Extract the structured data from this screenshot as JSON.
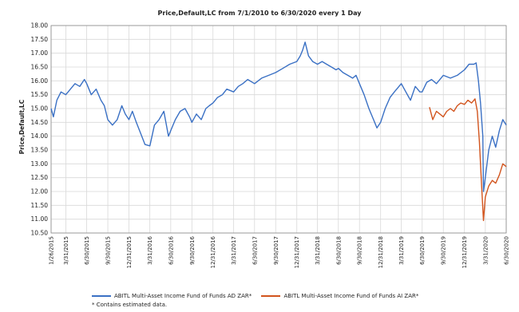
{
  "colors": {
    "ad": "#3a70c4",
    "ai": "#d2541d",
    "grid": "#d9d9d9",
    "axis": "#888888",
    "text": "#222222"
  },
  "chart_data": {
    "type": "line",
    "title": "Price,Default,LC from 7/1/2010 to 6/30/2020 every 1 Day",
    "xlabel": "",
    "ylabel": "Price,Default,LC",
    "grid": true,
    "legend_position": "bottom",
    "x_ticks": [
      "1/26/2015",
      "3/31/2015",
      "6/30/2015",
      "9/30/2015",
      "12/31/2015",
      "3/31/2016",
      "6/30/2016",
      "9/30/2016",
      "12/31/2016",
      "3/31/2017",
      "6/30/2017",
      "9/30/2017",
      "12/31/2017",
      "3/31/2018",
      "6/30/2018",
      "9/30/2018",
      "12/31/2018",
      "3/31/2019",
      "6/30/2019",
      "9/30/2019",
      "12/31/2019",
      "3/31/2020",
      "6/30/2020"
    ],
    "y_ticks": [
      "10.50",
      "11.00",
      "11.50",
      "12.00",
      "12.50",
      "13.00",
      "13.50",
      "14.00",
      "14.50",
      "15.00",
      "15.50",
      "16.00",
      "16.50",
      "17.00",
      "17.50",
      "18.00"
    ],
    "ylim": [
      10.5,
      18.0
    ],
    "series": [
      {
        "name": "ABITL Multi-Asset Income Fund of Funds AD ZAR*",
        "color": "#3a70c4",
        "x": [
          "2015-01-26",
          "2015-02-05",
          "2015-02-20",
          "2015-03-10",
          "2015-03-31",
          "2015-04-20",
          "2015-05-10",
          "2015-05-31",
          "2015-06-20",
          "2015-06-30",
          "2015-07-20",
          "2015-08-10",
          "2015-08-31",
          "2015-09-15",
          "2015-09-30",
          "2015-10-20",
          "2015-11-10",
          "2015-11-30",
          "2015-12-15",
          "2015-12-31",
          "2016-01-15",
          "2016-02-01",
          "2016-02-20",
          "2016-03-10",
          "2016-03-31",
          "2016-04-20",
          "2016-05-10",
          "2016-05-31",
          "2016-06-20",
          "2016-06-30",
          "2016-07-20",
          "2016-08-10",
          "2016-08-31",
          "2016-09-20",
          "2016-09-30",
          "2016-10-20",
          "2016-11-10",
          "2016-11-30",
          "2016-12-15",
          "2016-12-31",
          "2017-01-20",
          "2017-02-10",
          "2017-03-01",
          "2017-03-31",
          "2017-04-20",
          "2017-05-10",
          "2017-05-31",
          "2017-06-30",
          "2017-07-31",
          "2017-08-31",
          "2017-09-30",
          "2017-10-31",
          "2017-11-30",
          "2017-12-31",
          "2018-01-15",
          "2018-01-25",
          "2018-02-05",
          "2018-02-20",
          "2018-03-10",
          "2018-03-31",
          "2018-04-20",
          "2018-05-10",
          "2018-05-31",
          "2018-06-20",
          "2018-06-30",
          "2018-07-20",
          "2018-08-10",
          "2018-08-31",
          "2018-09-15",
          "2018-09-30",
          "2018-10-20",
          "2018-11-10",
          "2018-11-30",
          "2018-12-15",
          "2018-12-31",
          "2019-01-20",
          "2019-02-10",
          "2019-03-01",
          "2019-03-31",
          "2019-04-20",
          "2019-05-10",
          "2019-05-31",
          "2019-06-20",
          "2019-06-30",
          "2019-07-20",
          "2019-08-10",
          "2019-08-31",
          "2019-09-30",
          "2019-10-31",
          "2019-11-30",
          "2019-12-31",
          "2020-01-20",
          "2020-02-10",
          "2020-02-20",
          "2020-03-01",
          "2020-03-10",
          "2020-03-20",
          "2020-03-23",
          "2020-03-31",
          "2020-04-15",
          "2020-04-30",
          "2020-05-15",
          "2020-05-31",
          "2020-06-15",
          "2020-06-30"
        ],
        "y": [
          15.0,
          14.7,
          15.3,
          15.6,
          15.5,
          15.7,
          15.9,
          15.8,
          16.05,
          15.9,
          15.5,
          15.7,
          15.3,
          15.1,
          14.6,
          14.4,
          14.6,
          15.1,
          14.8,
          14.6,
          14.9,
          14.5,
          14.1,
          13.7,
          13.65,
          14.4,
          14.6,
          14.9,
          14.0,
          14.2,
          14.6,
          14.9,
          15.0,
          14.7,
          14.5,
          14.8,
          14.6,
          15.0,
          15.1,
          15.2,
          15.4,
          15.5,
          15.7,
          15.6,
          15.8,
          15.9,
          16.05,
          15.9,
          16.1,
          16.2,
          16.3,
          16.45,
          16.6,
          16.7,
          16.9,
          17.1,
          17.4,
          16.9,
          16.7,
          16.6,
          16.7,
          16.6,
          16.5,
          16.4,
          16.45,
          16.3,
          16.2,
          16.1,
          16.2,
          15.9,
          15.5,
          15.0,
          14.6,
          14.3,
          14.5,
          15.0,
          15.4,
          15.6,
          15.9,
          15.6,
          15.3,
          15.8,
          15.6,
          15.6,
          15.95,
          16.05,
          15.9,
          16.2,
          16.1,
          16.2,
          16.4,
          16.6,
          16.6,
          16.65,
          16.0,
          15.2,
          14.0,
          12.0,
          12.5,
          13.5,
          14.0,
          13.6,
          14.2,
          14.6,
          14.4
        ]
      },
      {
        "name": "ABITL Multi-Asset Income Fund of Funds AI ZAR*",
        "color": "#d2541d",
        "x": [
          "2019-08-01",
          "2019-08-15",
          "2019-08-31",
          "2019-09-15",
          "2019-09-30",
          "2019-10-15",
          "2019-10-31",
          "2019-11-15",
          "2019-11-30",
          "2019-12-15",
          "2019-12-31",
          "2020-01-15",
          "2020-01-31",
          "2020-02-15",
          "2020-02-25",
          "2020-03-05",
          "2020-03-15",
          "2020-03-23",
          "2020-03-31",
          "2020-04-15",
          "2020-04-30",
          "2020-05-15",
          "2020-05-31",
          "2020-06-15",
          "2020-06-30"
        ],
        "y": [
          15.05,
          14.6,
          14.9,
          14.8,
          14.7,
          14.9,
          15.0,
          14.9,
          15.1,
          15.2,
          15.15,
          15.3,
          15.2,
          15.35,
          14.9,
          13.8,
          12.2,
          10.95,
          11.8,
          12.2,
          12.4,
          12.3,
          12.6,
          13.0,
          12.9
        ]
      }
    ]
  },
  "legend": [
    {
      "label": "ABITL Multi-Asset Income Fund of Funds AD ZAR*",
      "color": "#3a70c4"
    },
    {
      "label": "ABITL Multi-Asset Income Fund of Funds AI ZAR*",
      "color": "#d2541d"
    }
  ],
  "footnote": "*  Contains estimated data."
}
